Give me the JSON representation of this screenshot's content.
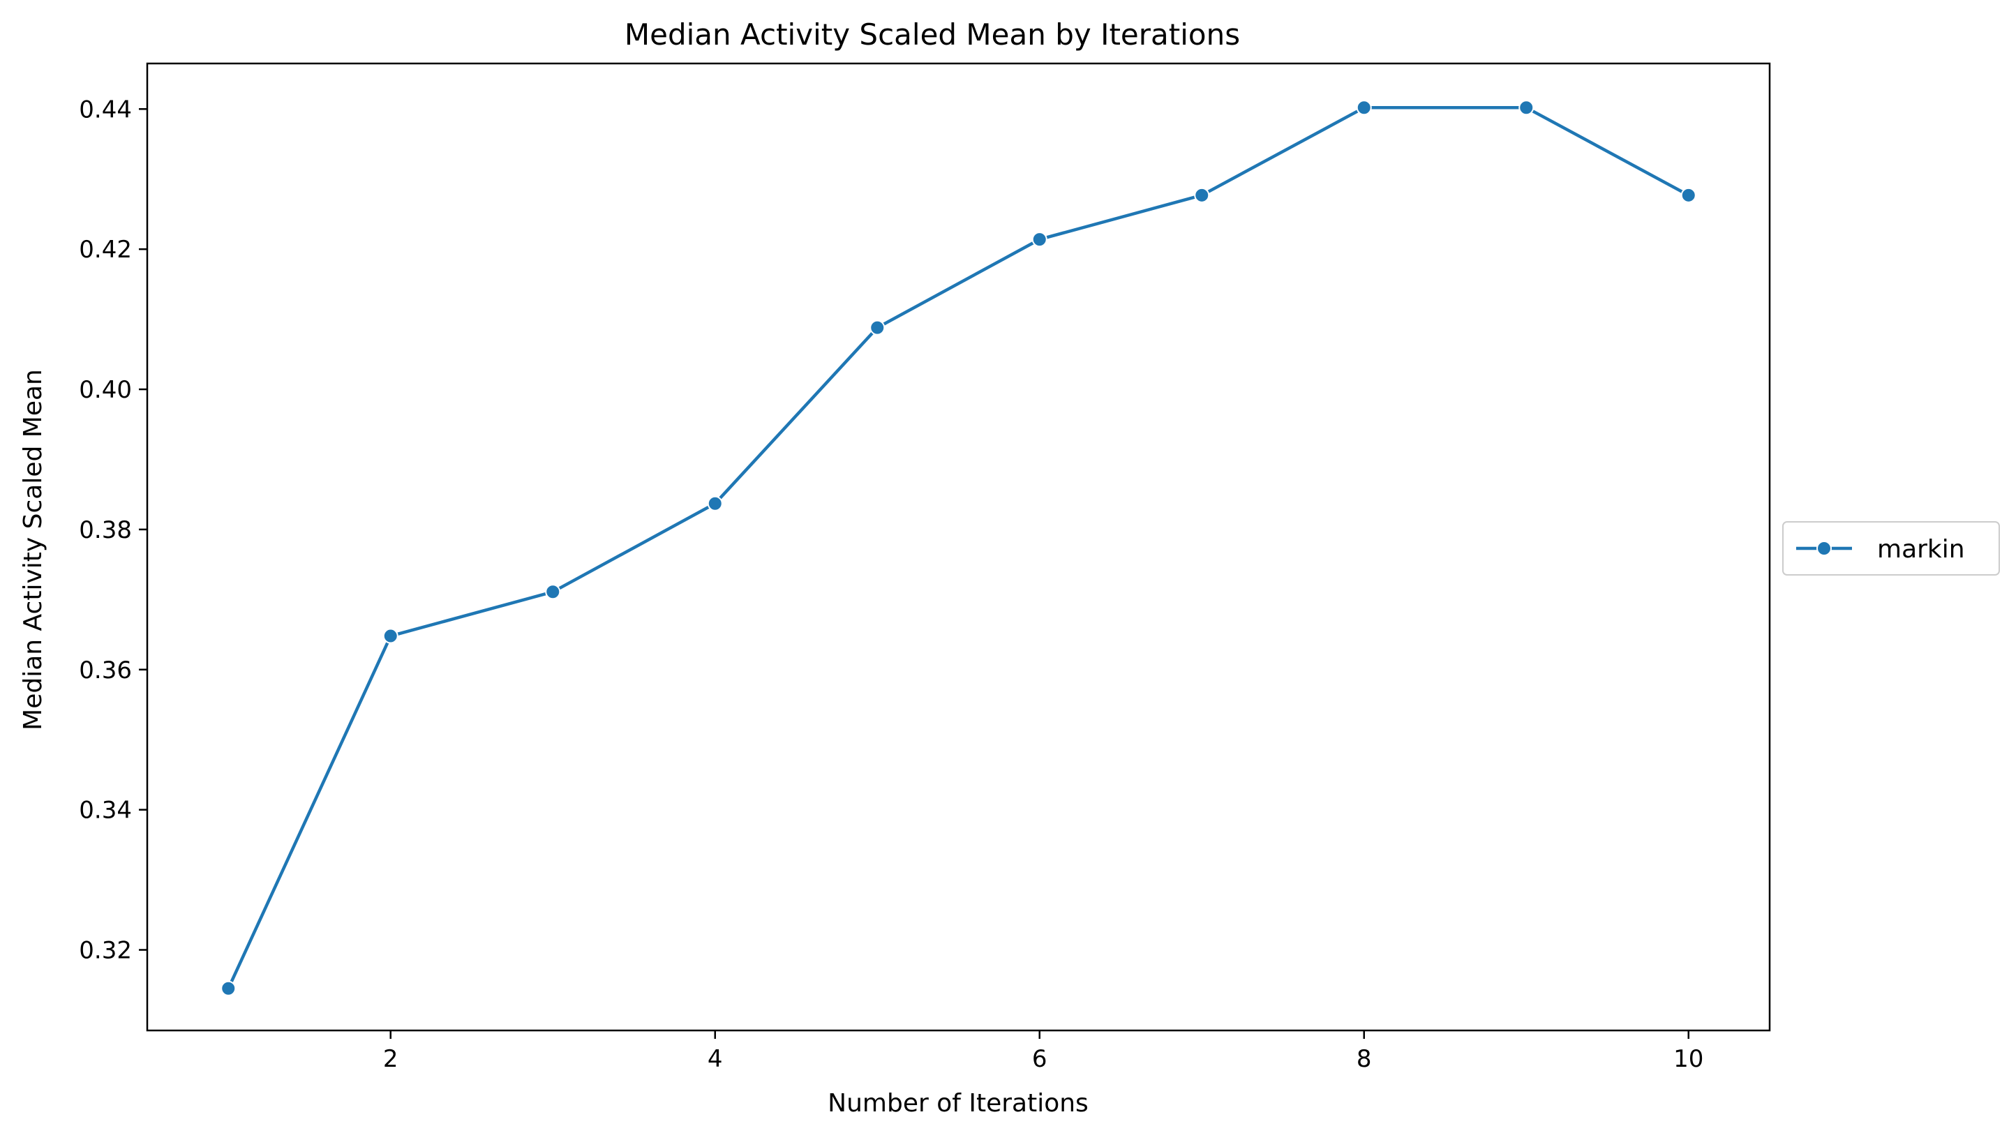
{
  "chart_data": {
    "type": "line",
    "title": "Median Activity Scaled Mean by Iterations",
    "xlabel": "Number of Iterations",
    "ylabel": "Median Activity Scaled Mean",
    "xlim": [
      0.5,
      10.5
    ],
    "ylim": [
      0.3085,
      0.4465
    ],
    "xticks": [
      2,
      4,
      6,
      8,
      10
    ],
    "xtick_labels": [
      "2",
      "4",
      "6",
      "8",
      "10"
    ],
    "yticks": [
      0.32,
      0.34,
      0.36,
      0.38,
      0.4,
      0.42,
      0.44
    ],
    "ytick_labels": [
      "0.32",
      "0.34",
      "0.36",
      "0.38",
      "0.40",
      "0.42",
      "0.44"
    ],
    "grid": false,
    "legend_placement": "center-right-outside",
    "series": [
      {
        "name": "markin",
        "color": "#1f77b4",
        "marker": "circle",
        "x": [
          1,
          2,
          3,
          4,
          5,
          6,
          7,
          8,
          9,
          10
        ],
        "y": [
          0.3145,
          0.3648,
          0.3711,
          0.3837,
          0.4088,
          0.4214,
          0.4277,
          0.4402,
          0.4402,
          0.4277
        ]
      }
    ]
  }
}
